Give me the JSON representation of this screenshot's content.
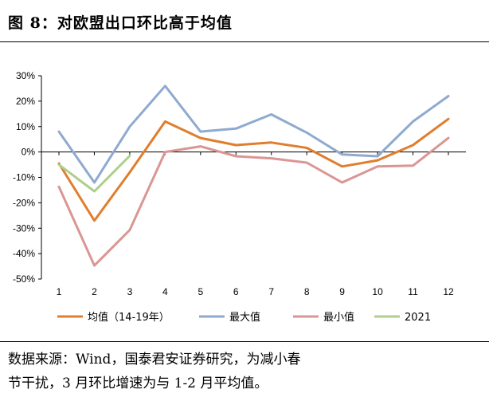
{
  "figure": {
    "title": "图 8：对欧盟出口环比高于均值"
  },
  "chart_data": {
    "type": "line",
    "title": "",
    "xlabel": "",
    "ylabel": "",
    "x": [
      1,
      2,
      3,
      4,
      5,
      6,
      7,
      8,
      9,
      10,
      11,
      12
    ],
    "ylim": [
      -50,
      30
    ],
    "yticks": [
      -50,
      -40,
      -30,
      -20,
      -10,
      0,
      10,
      20,
      30
    ],
    "ytick_format": "percent",
    "grid": false,
    "legend": "bottom",
    "series": [
      {
        "name": "均值（14-19年）",
        "color": "#E07E2E",
        "values": [
          -4.5,
          -27,
          -8,
          12,
          5.5,
          2.7,
          3.7,
          1.6,
          -5.7,
          -3.3,
          2.7,
          13
        ]
      },
      {
        "name": "最大值",
        "color": "#8FAACF",
        "values": [
          8,
          -12,
          10,
          26,
          8,
          9.2,
          14.8,
          7.6,
          -1,
          -1.7,
          12,
          22
        ]
      },
      {
        "name": "最小值",
        "color": "#D99694",
        "values": [
          -13.7,
          -44.7,
          -30.7,
          0,
          2.2,
          -1.7,
          -2.5,
          -4.2,
          -12,
          -5.7,
          -5.4,
          5.5
        ]
      },
      {
        "name": "2021",
        "color": "#AECF8C",
        "values": [
          -5,
          -15.5,
          -1.5,
          null,
          null,
          null,
          null,
          null,
          null,
          null,
          null,
          null
        ]
      }
    ]
  },
  "source": {
    "line1": "数据来源：Wind，国泰君安证券研究，为减小春",
    "line2": "节干扰，3 月环比增速为与 1-2 月平均值。"
  }
}
